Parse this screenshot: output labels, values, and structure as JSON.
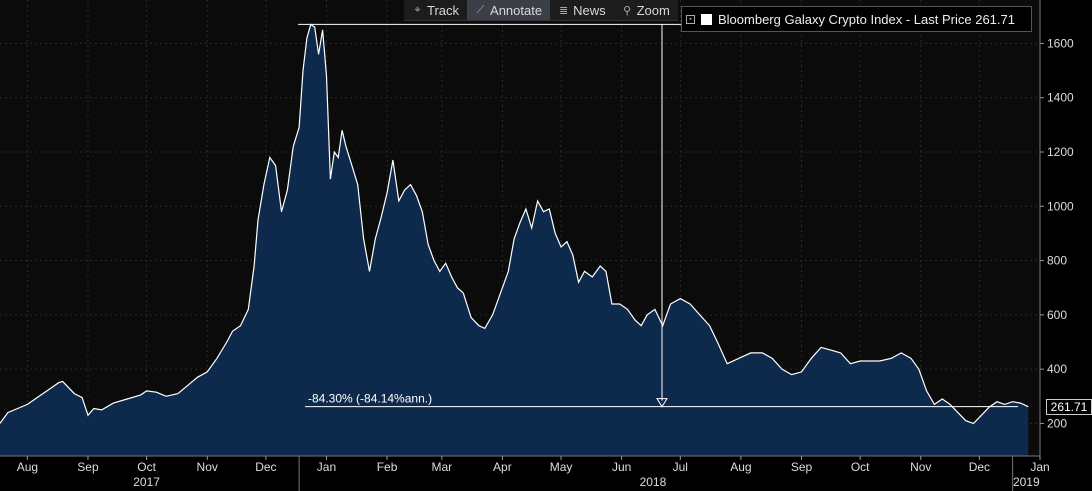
{
  "toolbar": {
    "items": [
      {
        "label": "Track",
        "icon": "crosshair-icon"
      },
      {
        "label": "Annotate",
        "icon": "pencil-icon"
      },
      {
        "label": "News",
        "icon": "news-icon"
      },
      {
        "label": "Zoom",
        "icon": "magnifier-icon"
      }
    ],
    "active": "Annotate"
  },
  "legend": {
    "label": "Bloomberg Galaxy Crypto Index - Last Price 261.71",
    "swatch_color": "#ffffff"
  },
  "last_price_tag": "261.71",
  "annotation": {
    "text": "-84.30% (-84.14%ann.)",
    "from_value": 1670,
    "to_value": 261.71
  },
  "chart_data": {
    "type": "area",
    "title": "",
    "xlabel": "",
    "ylabel": "",
    "x_range": [
      "2017-08-01",
      "2019-01-15"
    ],
    "ylim": [
      80,
      1760
    ],
    "y_ticks": [
      200,
      400,
      600,
      800,
      1000,
      1200,
      1400,
      1600
    ],
    "grid": true,
    "month_labels": [
      {
        "date": "2017-08-15",
        "label": "Aug"
      },
      {
        "date": "2017-09-15",
        "label": "Sep"
      },
      {
        "date": "2017-10-15",
        "label": "Oct"
      },
      {
        "date": "2017-11-15",
        "label": "Nov"
      },
      {
        "date": "2017-12-15",
        "label": "Dec"
      },
      {
        "date": "2018-01-15",
        "label": "Jan"
      },
      {
        "date": "2018-02-15",
        "label": "Feb"
      },
      {
        "date": "2018-03-15",
        "label": "Mar"
      },
      {
        "date": "2018-04-15",
        "label": "Apr"
      },
      {
        "date": "2018-05-15",
        "label": "May"
      },
      {
        "date": "2018-06-15",
        "label": "Jun"
      },
      {
        "date": "2018-07-15",
        "label": "Jul"
      },
      {
        "date": "2018-08-15",
        "label": "Aug"
      },
      {
        "date": "2018-09-15",
        "label": "Sep"
      },
      {
        "date": "2018-10-15",
        "label": "Oct"
      },
      {
        "date": "2018-11-15",
        "label": "Nov"
      },
      {
        "date": "2018-12-15",
        "label": "Dec"
      },
      {
        "date": "2019-01-15",
        "label": "Jan"
      }
    ],
    "year_labels": [
      {
        "date": "2017-10-15",
        "label": "2017"
      },
      {
        "date": "2018-07-01",
        "label": "2018"
      },
      {
        "date": "2019-01-08",
        "label": "2019"
      }
    ],
    "year_dividers": [
      "2018-01-01",
      "2019-01-01"
    ],
    "series": [
      {
        "name": "Bloomberg Galaxy Crypto Index - Last Price",
        "color": "#ffffff",
        "fill": "#0d2a4c",
        "points": [
          [
            "2017-08-01",
            200
          ],
          [
            "2017-08-05",
            240
          ],
          [
            "2017-08-10",
            255
          ],
          [
            "2017-08-15",
            270
          ],
          [
            "2017-08-20",
            295
          ],
          [
            "2017-08-25",
            320
          ],
          [
            "2017-08-31",
            350
          ],
          [
            "2017-09-02",
            355
          ],
          [
            "2017-09-08",
            310
          ],
          [
            "2017-09-12",
            295
          ],
          [
            "2017-09-15",
            230
          ],
          [
            "2017-09-18",
            255
          ],
          [
            "2017-09-22",
            250
          ],
          [
            "2017-09-28",
            275
          ],
          [
            "2017-10-05",
            290
          ],
          [
            "2017-10-12",
            305
          ],
          [
            "2017-10-15",
            320
          ],
          [
            "2017-10-20",
            315
          ],
          [
            "2017-10-25",
            300
          ],
          [
            "2017-10-31",
            310
          ],
          [
            "2017-11-05",
            340
          ],
          [
            "2017-11-10",
            370
          ],
          [
            "2017-11-15",
            390
          ],
          [
            "2017-11-20",
            440
          ],
          [
            "2017-11-25",
            500
          ],
          [
            "2017-11-28",
            540
          ],
          [
            "2017-12-02",
            560
          ],
          [
            "2017-12-06",
            620
          ],
          [
            "2017-12-09",
            780
          ],
          [
            "2017-12-11",
            950
          ],
          [
            "2017-12-14",
            1080
          ],
          [
            "2017-12-17",
            1180
          ],
          [
            "2017-12-20",
            1150
          ],
          [
            "2017-12-23",
            980
          ],
          [
            "2017-12-26",
            1060
          ],
          [
            "2017-12-29",
            1220
          ],
          [
            "2018-01-01",
            1290
          ],
          [
            "2018-01-03",
            1500
          ],
          [
            "2018-01-05",
            1620
          ],
          [
            "2018-01-07",
            1670
          ],
          [
            "2018-01-09",
            1660
          ],
          [
            "2018-01-11",
            1560
          ],
          [
            "2018-01-13",
            1650
          ],
          [
            "2018-01-15",
            1480
          ],
          [
            "2018-01-17",
            1100
          ],
          [
            "2018-01-19",
            1200
          ],
          [
            "2018-01-21",
            1180
          ],
          [
            "2018-01-23",
            1280
          ],
          [
            "2018-01-25",
            1220
          ],
          [
            "2018-01-28",
            1150
          ],
          [
            "2018-01-31",
            1080
          ],
          [
            "2018-02-03",
            880
          ],
          [
            "2018-02-06",
            760
          ],
          [
            "2018-02-09",
            880
          ],
          [
            "2018-02-12",
            960
          ],
          [
            "2018-02-15",
            1050
          ],
          [
            "2018-02-18",
            1170
          ],
          [
            "2018-02-21",
            1020
          ],
          [
            "2018-02-24",
            1060
          ],
          [
            "2018-02-27",
            1080
          ],
          [
            "2018-03-02",
            1040
          ],
          [
            "2018-03-05",
            980
          ],
          [
            "2018-03-08",
            860
          ],
          [
            "2018-03-11",
            800
          ],
          [
            "2018-03-14",
            760
          ],
          [
            "2018-03-17",
            790
          ],
          [
            "2018-03-20",
            740
          ],
          [
            "2018-03-23",
            700
          ],
          [
            "2018-03-26",
            680
          ],
          [
            "2018-03-30",
            590
          ],
          [
            "2018-04-03",
            560
          ],
          [
            "2018-04-06",
            550
          ],
          [
            "2018-04-10",
            600
          ],
          [
            "2018-04-14",
            680
          ],
          [
            "2018-04-18",
            760
          ],
          [
            "2018-04-21",
            880
          ],
          [
            "2018-04-24",
            940
          ],
          [
            "2018-04-27",
            990
          ],
          [
            "2018-04-30",
            920
          ],
          [
            "2018-05-03",
            1020
          ],
          [
            "2018-05-06",
            980
          ],
          [
            "2018-05-09",
            990
          ],
          [
            "2018-05-12",
            900
          ],
          [
            "2018-05-15",
            850
          ],
          [
            "2018-05-18",
            870
          ],
          [
            "2018-05-21",
            820
          ],
          [
            "2018-05-24",
            720
          ],
          [
            "2018-05-27",
            760
          ],
          [
            "2018-05-31",
            740
          ],
          [
            "2018-06-04",
            780
          ],
          [
            "2018-06-07",
            760
          ],
          [
            "2018-06-10",
            640
          ],
          [
            "2018-06-14",
            640
          ],
          [
            "2018-06-18",
            620
          ],
          [
            "2018-06-22",
            580
          ],
          [
            "2018-06-25",
            560
          ],
          [
            "2018-06-28",
            600
          ],
          [
            "2018-07-02",
            620
          ],
          [
            "2018-07-06",
            560
          ],
          [
            "2018-07-10",
            640
          ],
          [
            "2018-07-15",
            660
          ],
          [
            "2018-07-20",
            640
          ],
          [
            "2018-07-25",
            600
          ],
          [
            "2018-07-30",
            560
          ],
          [
            "2018-08-03",
            500
          ],
          [
            "2018-08-08",
            420
          ],
          [
            "2018-08-14",
            440
          ],
          [
            "2018-08-20",
            460
          ],
          [
            "2018-08-26",
            460
          ],
          [
            "2018-08-31",
            440
          ],
          [
            "2018-09-05",
            400
          ],
          [
            "2018-09-10",
            380
          ],
          [
            "2018-09-15",
            390
          ],
          [
            "2018-09-20",
            440
          ],
          [
            "2018-09-25",
            480
          ],
          [
            "2018-09-30",
            470
          ],
          [
            "2018-10-05",
            460
          ],
          [
            "2018-10-10",
            420
          ],
          [
            "2018-10-15",
            430
          ],
          [
            "2018-10-20",
            430
          ],
          [
            "2018-10-25",
            430
          ],
          [
            "2018-10-31",
            440
          ],
          [
            "2018-11-05",
            460
          ],
          [
            "2018-11-10",
            440
          ],
          [
            "2018-11-14",
            400
          ],
          [
            "2018-11-18",
            320
          ],
          [
            "2018-11-22",
            270
          ],
          [
            "2018-11-26",
            290
          ],
          [
            "2018-11-30",
            270
          ],
          [
            "2018-12-04",
            240
          ],
          [
            "2018-12-08",
            210
          ],
          [
            "2018-12-12",
            200
          ],
          [
            "2018-12-16",
            230
          ],
          [
            "2018-12-20",
            260
          ],
          [
            "2018-12-24",
            280
          ],
          [
            "2018-12-28",
            270
          ],
          [
            "2019-01-01",
            280
          ],
          [
            "2019-01-05",
            275
          ],
          [
            "2019-01-09",
            261.71
          ]
        ]
      }
    ]
  }
}
